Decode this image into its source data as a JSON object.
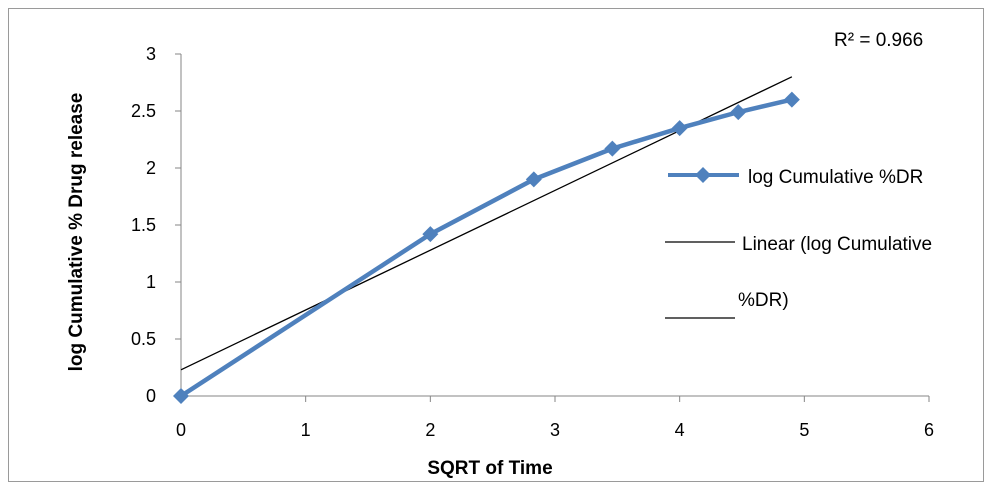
{
  "chart_data": {
    "type": "scatter",
    "title": "",
    "xlabel": "SQRT of Time",
    "ylabel": "log Cumulative  % Drug release",
    "xlim": [
      0,
      6
    ],
    "ylim": [
      0,
      3
    ],
    "x_ticks": [
      "0",
      "1",
      "2",
      "3",
      "4",
      "5",
      "6"
    ],
    "y_ticks": [
      "0",
      "0.5",
      "1",
      "1.5",
      "2",
      "2.5",
      "3"
    ],
    "grid": false,
    "legend_position": "right",
    "series": [
      {
        "name": "log Cumulative %DR",
        "color": "#4f81bd",
        "marker": "diamond",
        "x": [
          0,
          2,
          2.83,
          3.46,
          4,
          4.47,
          4.9
        ],
        "y": [
          0,
          1.42,
          1.9,
          2.17,
          2.35,
          2.49,
          2.6
        ]
      }
    ],
    "trendline": {
      "name_line1": "Linear (log Cumulative",
      "name_line2": "%DR)",
      "color": "#000000",
      "x": [
        0,
        4.9
      ],
      "y": [
        0.23,
        2.8
      ]
    },
    "annotation": "R² = 0.966"
  }
}
